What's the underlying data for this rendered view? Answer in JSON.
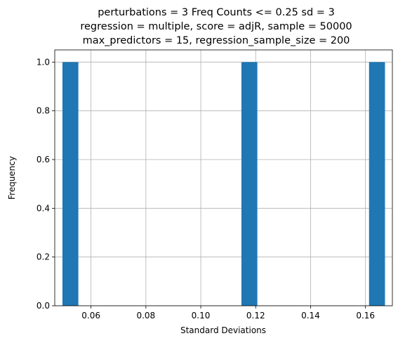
{
  "chart_data": {
    "type": "bar",
    "title_lines": [
      "perturbations = 3  Freq Counts <= 0.25 sd = 3",
      "regression = multiple, score = adjR, sample = 50000",
      "max_predictors = 15, regression_sample_size = 200"
    ],
    "xlabel": "Standard Deviations",
    "ylabel": "Frequency",
    "xlim": [
      0.0468,
      0.1698
    ],
    "ylim": [
      0.0,
      1.05
    ],
    "x_ticks": [
      {
        "value": 0.06,
        "label": "0.06"
      },
      {
        "value": 0.08,
        "label": "0.08"
      },
      {
        "value": 0.1,
        "label": "0.10"
      },
      {
        "value": 0.12,
        "label": "0.12"
      },
      {
        "value": 0.14,
        "label": "0.14"
      },
      {
        "value": 0.16,
        "label": "0.16"
      }
    ],
    "y_ticks": [
      {
        "value": 0.0,
        "label": "0.0"
      },
      {
        "value": 0.2,
        "label": "0.2"
      },
      {
        "value": 0.4,
        "label": "0.4"
      },
      {
        "value": 0.6,
        "label": "0.6"
      },
      {
        "value": 0.8,
        "label": "0.8"
      },
      {
        "value": 1.0,
        "label": "1.0"
      }
    ],
    "bins": [
      {
        "x0": 0.0496,
        "x1": 0.0554,
        "count": 1
      },
      {
        "x0": 0.1148,
        "x1": 0.1206,
        "count": 1
      },
      {
        "x0": 0.1613,
        "x1": 0.1671,
        "count": 1
      }
    ],
    "grid": true,
    "bar_color": "#1f77b4"
  }
}
